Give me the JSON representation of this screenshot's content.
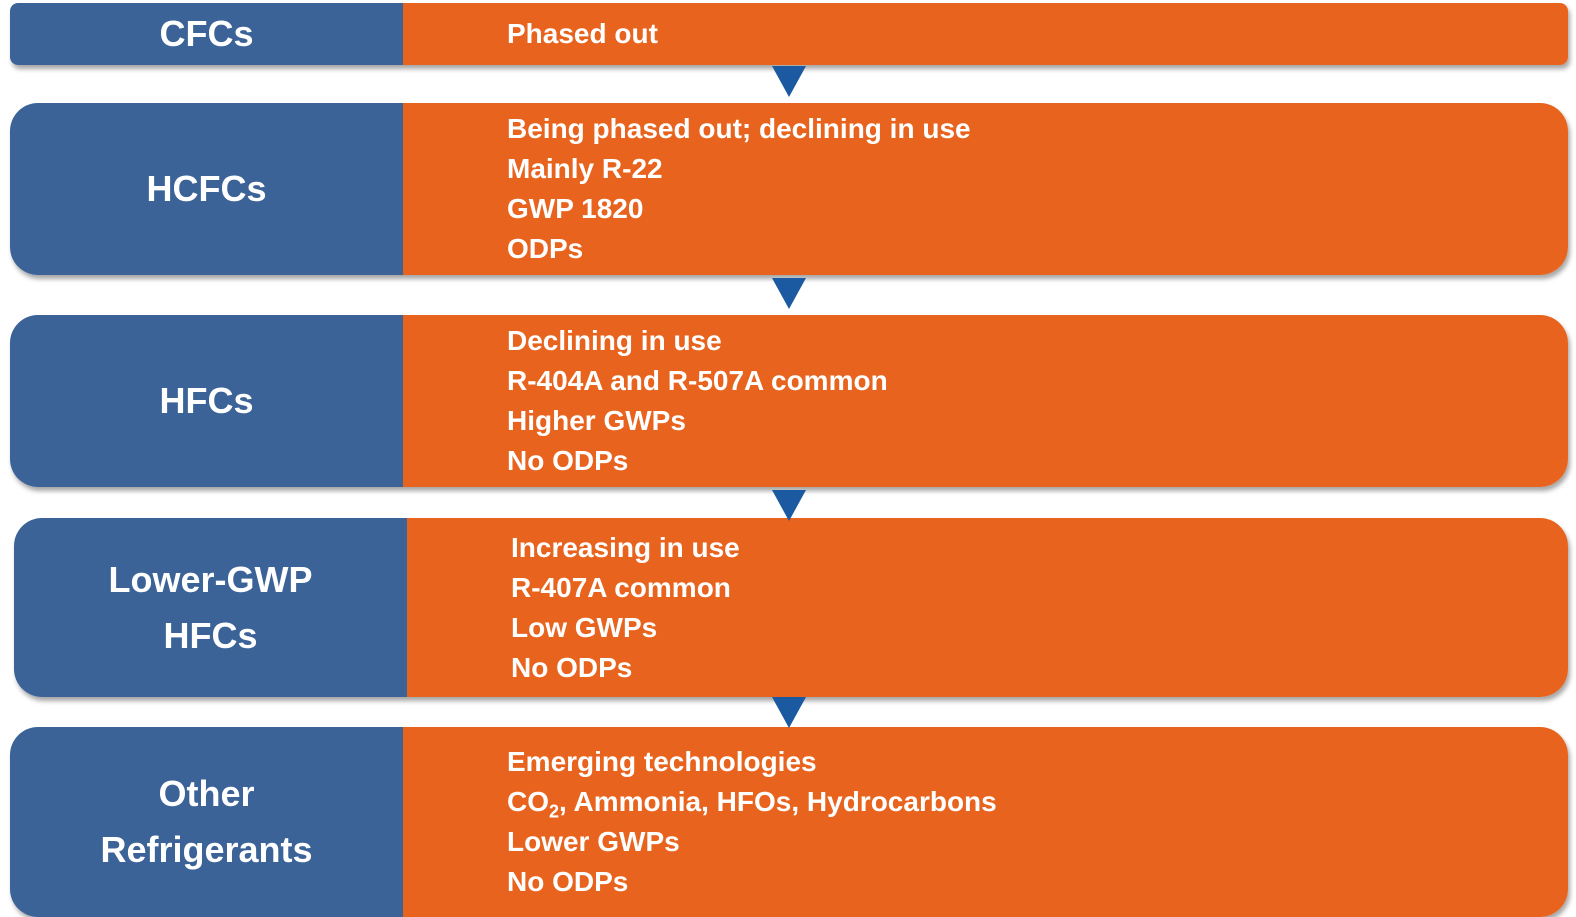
{
  "rows": [
    {
      "label": "CFCs",
      "lines": [
        "Phased out"
      ]
    },
    {
      "label": "HCFCs",
      "lines": [
        "Being phased out; declining in use",
        "Mainly R-22",
        "GWP 1820",
        "ODPs"
      ]
    },
    {
      "label": "HFCs",
      "lines": [
        "Declining in use",
        "R-404A and R-507A common",
        "Higher GWPs",
        "No ODPs"
      ]
    },
    {
      "label": "Lower-GWP HFCs",
      "lines": [
        "Increasing in use",
        "R-407A common",
        "Low GWPs",
        "No ODPs"
      ]
    },
    {
      "label": "Other Refrigerants",
      "lines": [
        "Emerging technologies",
        {
          "base": "CO",
          "sub": "2",
          "rest": ", Ammonia, HFOs, Hydrocarbons"
        },
        "Lower GWPs",
        "No ODPs"
      ]
    }
  ]
}
